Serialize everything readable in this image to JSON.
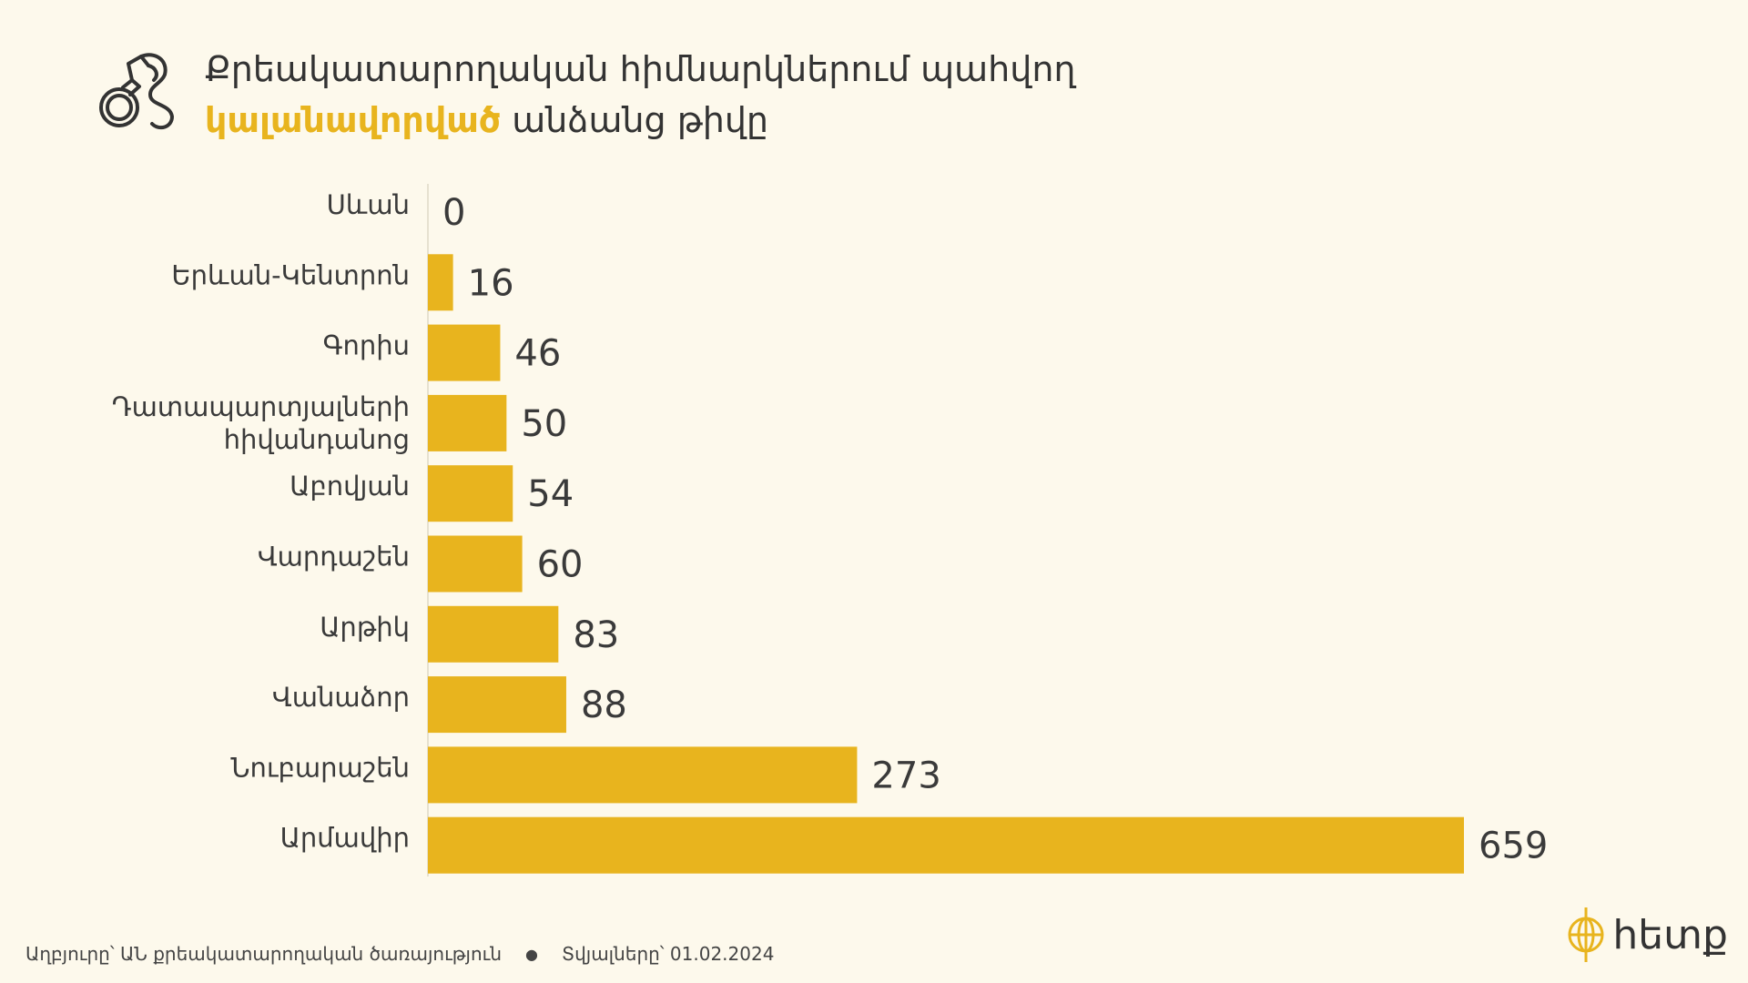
{
  "header": {
    "title_line1": "Քրեակատարողական հիմնարկներում պահվող",
    "title_highlight": "կալանավորված",
    "title_rest": "անձանց թիվը"
  },
  "chart_data": {
    "type": "bar",
    "orientation": "horizontal",
    "categories": [
      "Սևան",
      "Երևան-Կենտրոն",
      "Գորիս",
      "Դատապարտյալների հիվանդանոց",
      "Աբովյան",
      "Վարդաշեն",
      "Արթիկ",
      "Վանաձոր",
      "Նուբարաշեն",
      "Արմավիր"
    ],
    "values": [
      0,
      16,
      46,
      50,
      54,
      60,
      83,
      88,
      273,
      659
    ],
    "color": "#e8b41e"
  },
  "footer": {
    "source": "Աղբյուրը՝ ԱՆ քրեակատարողական ծառայություն",
    "date": "Տվյալները՝ 01.02.2024"
  },
  "logo": {
    "text": "հետք"
  }
}
